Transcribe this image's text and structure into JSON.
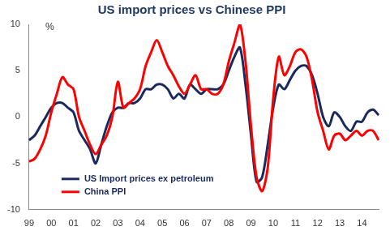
{
  "chart_data": {
    "type": "line",
    "title": "US import prices vs Chinese PPI",
    "ylabel": "%",
    "categories": [
      "99",
      null,
      null,
      null,
      "00",
      null,
      null,
      null,
      "01",
      null,
      null,
      null,
      "02",
      null,
      null,
      null,
      "03",
      null,
      null,
      null,
      "04",
      null,
      null,
      null,
      "05",
      null,
      null,
      null,
      "06",
      null,
      null,
      null,
      "07",
      null,
      null,
      null,
      "08",
      null,
      null,
      null,
      "09",
      null,
      null,
      null,
      "10",
      null,
      null,
      null,
      "11",
      null,
      null,
      null,
      "12",
      null,
      null,
      null,
      "13",
      null,
      null,
      null,
      "14",
      null,
      null,
      null
    ],
    "series": [
      {
        "name": "US Import prices ex petroleum",
        "color": "#1b2a5c",
        "values": [
          -2.5,
          -2.0,
          -1.0,
          0.0,
          1.0,
          1.5,
          1.5,
          1.0,
          0.5,
          -1.5,
          -2.5,
          -3.5,
          -5.0,
          -3.0,
          -1.0,
          0.5,
          1.0,
          1.0,
          1.5,
          1.5,
          2.0,
          3.0,
          3.0,
          3.5,
          3.5,
          3.0,
          2.0,
          2.5,
          2.0,
          3.5,
          3.0,
          2.5,
          3.0,
          3.0,
          3.0,
          3.5,
          5.0,
          6.5,
          7.5,
          3.5,
          -2.0,
          -7.0,
          -6.5,
          -3.0,
          1.0,
          3.5,
          3.0,
          4.0,
          5.0,
          5.5,
          5.5,
          4.5,
          2.5,
          0.0,
          -1.0,
          0.5,
          0.0,
          -1.0,
          -1.5,
          -0.5,
          -0.5,
          0.5,
          0.8,
          0.2
        ]
      },
      {
        "name": "China PPI",
        "color": "#ff0000",
        "values": [
          -4.8,
          -4.5,
          -3.5,
          -2.0,
          0.5,
          2.5,
          4.3,
          3.5,
          3.0,
          0.0,
          -1.5,
          -3.0,
          -4.0,
          -3.0,
          -2.0,
          0.0,
          3.8,
          1.0,
          1.5,
          2.0,
          3.0,
          5.5,
          7.0,
          8.3,
          7.0,
          5.5,
          4.5,
          3.3,
          2.5,
          3.5,
          4.5,
          3.0,
          3.0,
          2.5,
          2.5,
          3.5,
          6.0,
          8.0,
          10.0,
          6.0,
          -1.0,
          -6.5,
          -8.0,
          -5.5,
          2.0,
          6.5,
          4.5,
          5.5,
          7.0,
          7.3,
          6.5,
          4.0,
          0.5,
          -1.5,
          -3.5,
          -2.0,
          -1.8,
          -2.5,
          -2.0,
          -1.5,
          -2.0,
          -1.5,
          -1.5,
          -2.5
        ]
      }
    ],
    "ylim": [
      -10,
      10
    ],
    "yticks": [
      -10,
      -5,
      0,
      5,
      10
    ],
    "grid": false,
    "legend": "lower left"
  }
}
